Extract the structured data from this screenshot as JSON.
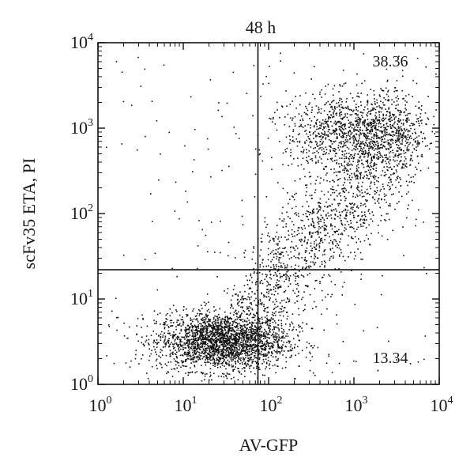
{
  "chart_data": {
    "type": "scatter",
    "title": "48 h",
    "xlabel": "AV-GFP",
    "ylabel": "scFv35 ETA, PI",
    "xscale": "log",
    "yscale": "log",
    "xlim": [
      1,
      10000
    ],
    "ylim": [
      1,
      10000
    ],
    "grid": false,
    "legend": "none",
    "point_color": "#111111",
    "x_ticks": [
      {
        "base": "10",
        "exp": "0",
        "value": 1
      },
      {
        "base": "10",
        "exp": "1",
        "value": 10
      },
      {
        "base": "10",
        "exp": "2",
        "value": 100
      },
      {
        "base": "10",
        "exp": "3",
        "value": 1000
      },
      {
        "base": "10",
        "exp": "4",
        "value": 10000
      }
    ],
    "y_ticks": [
      {
        "base": "10",
        "exp": "0",
        "value": 1
      },
      {
        "base": "10",
        "exp": "1",
        "value": 10
      },
      {
        "base": "10",
        "exp": "2",
        "value": 100
      },
      {
        "base": "10",
        "exp": "3",
        "value": 1000
      },
      {
        "base": "10",
        "exp": "4",
        "value": 10000
      }
    ],
    "gates": {
      "x": 75,
      "y": 22
    },
    "quadrant_labels": {
      "upper_right": "38.36",
      "lower_right": "13.34"
    },
    "populations": [
      {
        "region": "low-low",
        "n": 2400,
        "log_x_mean": 1.45,
        "log_x_sd": 0.38,
        "log_y_mean": 0.5,
        "log_y_sd": 0.17
      },
      {
        "region": "high-high",
        "n": 1200,
        "log_x_mean": 3.05,
        "log_x_sd": 0.42,
        "log_y_mean": 2.95,
        "log_y_sd": 0.22
      },
      {
        "region": "diagonal",
        "n": 1500,
        "log_x_from": 1.7,
        "log_x_to": 3.7,
        "log_y_from": 0.8,
        "log_y_to": 3.0,
        "spread": 0.35
      },
      {
        "region": "sparse",
        "n": 220,
        "log_x_range": [
          0.1,
          3.9
        ],
        "log_y_range": [
          0.05,
          3.9
        ]
      }
    ]
  }
}
